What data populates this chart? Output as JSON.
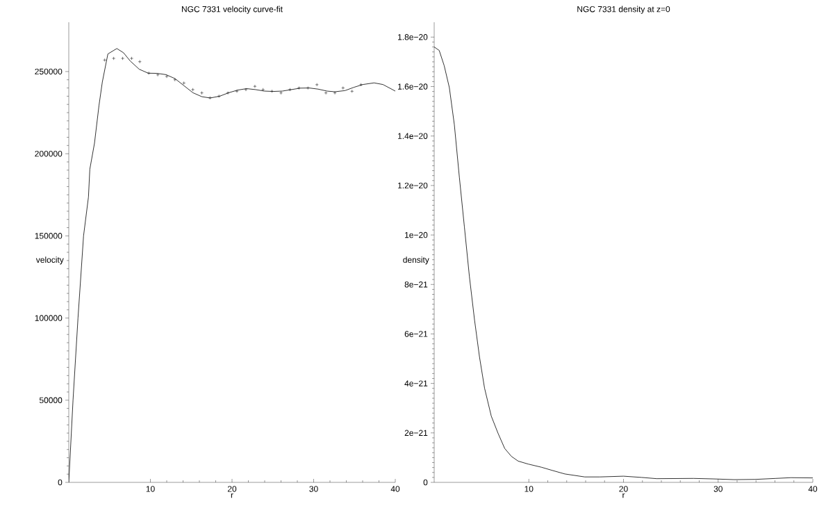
{
  "chart_data": [
    {
      "type": "line",
      "title": "NGC 7331 velocity curve-fit",
      "xlabel": "r",
      "ylabel": "velocity",
      "xlim": [
        0,
        40
      ],
      "ylim": [
        0,
        280000
      ],
      "xticks": [
        10,
        20,
        30,
        40
      ],
      "yticks": [
        0,
        50000,
        100000,
        150000,
        200000,
        250000
      ],
      "series": [
        {
          "type": "line",
          "color": "#000000",
          "line_style": "solid",
          "x": [
            0,
            0.52,
            1.13,
            1.81,
            2.41,
            2.58,
            3.15,
            3.7,
            4.11,
            4.79,
            5.89,
            6.71,
            7.53,
            8.63,
            9.73,
            10.82,
            11.92,
            13.01,
            14.11,
            15.21,
            16.3,
            17.32,
            18.49,
            19.59,
            20.68,
            21.78,
            22.88,
            23.97,
            25.07,
            26.16,
            27.26,
            28.36,
            29.45,
            30.55,
            31.64,
            32.6,
            33.84,
            34.93,
            36.03,
            37.4,
            38.49,
            40
          ],
          "values": [
            0,
            50000,
            100000,
            150000,
            173600,
            190600,
            206400,
            229300,
            243600,
            260700,
            264000,
            261400,
            256400,
            251400,
            249000,
            248900,
            248100,
            245700,
            241400,
            237100,
            234700,
            233900,
            235000,
            237100,
            238700,
            239600,
            239000,
            238100,
            237900,
            238100,
            239000,
            239900,
            240000,
            239300,
            238100,
            237700,
            238400,
            240400,
            242100,
            243100,
            242100,
            238100
          ]
        },
        {
          "type": "scatter",
          "color": "#000000",
          "marker": "cross",
          "x": [
            4.4,
            5.5,
            6.6,
            7.7,
            8.7,
            9.8,
            10.9,
            12.0,
            13.0,
            14.1,
            15.2,
            16.3,
            17.3,
            18.4,
            19.5,
            20.6,
            21.7,
            22.8,
            23.8,
            24.9,
            26.0,
            27.1,
            28.2,
            29.3,
            30.4,
            31.5,
            32.6,
            33.6,
            34.7,
            35.8
          ],
          "values": [
            257000,
            258000,
            258000,
            258000,
            256000,
            249000,
            248000,
            247000,
            245000,
            243000,
            239000,
            237000,
            234000,
            235000,
            237000,
            238000,
            239000,
            241000,
            239000,
            238000,
            237000,
            239000,
            240000,
            240000,
            242000,
            237000,
            237000,
            240000,
            238000,
            242000
          ]
        }
      ]
    },
    {
      "type": "line",
      "title": "NGC 7331 density at z=0",
      "xlabel": "r",
      "ylabel": "density",
      "xlim": [
        0,
        40
      ],
      "ylim": [
        0,
        1.86e-20
      ],
      "xticks": [
        10,
        20,
        30,
        40
      ],
      "yticks": [
        0,
        {
          "value": 2e-21,
          "label": "2e−21"
        },
        {
          "value": 4e-21,
          "label": "4e−21"
        },
        {
          "value": 6e-21,
          "label": "6e−21"
        },
        {
          "value": 8e-21,
          "label": "8e−21"
        },
        {
          "value": 1e-20,
          "label": "1e−20"
        },
        {
          "value": 1.2e-20,
          "label": "1.2e−20"
        },
        {
          "value": 1.4e-20,
          "label": "1.4e−20"
        },
        {
          "value": 1.6e-20,
          "label": "1.6e−20"
        },
        {
          "value": 1.8e-20,
          "label": "1.8e−20"
        }
      ],
      "series": [
        {
          "type": "line",
          "color": "#000000",
          "line_style": "solid",
          "x": [
            0,
            0.53,
            1.06,
            1.6,
            2.13,
            2.66,
            3.19,
            3.72,
            4.26,
            4.79,
            5.32,
            6.03,
            6.74,
            7.45,
            8.16,
            8.87,
            9.93,
            11.35,
            12.41,
            13.8,
            15.9,
            17.5,
            20,
            21.9,
            23.5,
            27.4,
            29.5,
            31.7,
            33.9,
            36.1,
            37.7,
            40
          ],
          "values": [
            1.76e-20,
            1.746e-20,
            1.684e-20,
            1.596e-20,
            1.446e-20,
            1.233e-20,
            1.033e-20,
            8.32e-21,
            6.57e-21,
            5.06e-21,
            3.81e-21,
            2.68e-21,
            1.99e-21,
            1.37e-21,
            1.05e-21,
            8.6e-22,
            7.4e-22,
            6.1e-22,
            4.9e-22,
            3.4e-22,
            2.2e-22,
            2.2e-22,
            2.5e-22,
            2e-22,
            1.5e-22,
            1.6e-22,
            1.4e-22,
            1.1e-22,
            1.2e-22,
            1.6e-22,
            1.9e-22,
            1.8e-22
          ]
        }
      ]
    }
  ]
}
